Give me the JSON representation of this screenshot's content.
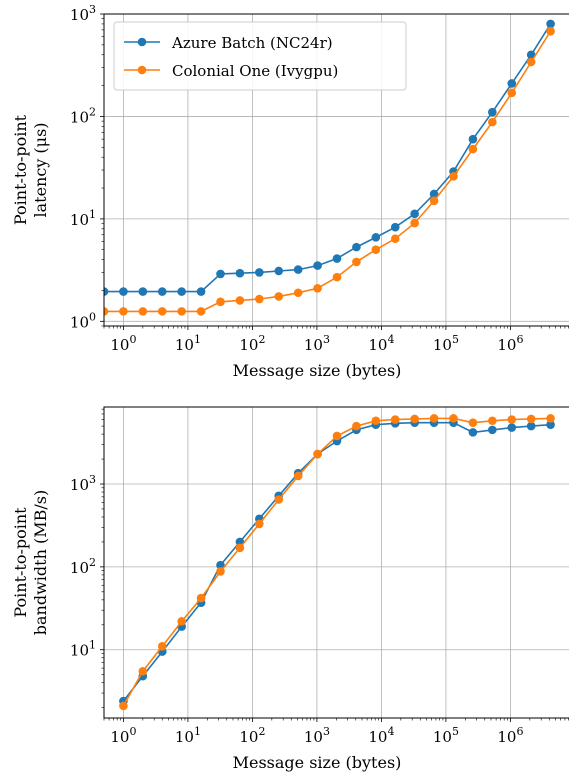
{
  "chart_data": [
    {
      "type": "line",
      "title": "",
      "xlabel": "Message size (bytes)",
      "ylabel_lines": [
        "Point-to-point",
        "latency (μs)"
      ],
      "xscale": "log",
      "yscale": "log",
      "xlim": [
        0.5,
        8388608
      ],
      "ylim": [
        0.9,
        1000
      ],
      "grid": true,
      "legend": "top-left",
      "x_ticks": [
        1,
        10,
        100,
        1000,
        10000,
        100000,
        1000000
      ],
      "x_tick_labels": [
        [
          "10",
          "0"
        ],
        [
          "10",
          "1"
        ],
        [
          "10",
          "2"
        ],
        [
          "10",
          "3"
        ],
        [
          "10",
          "4"
        ],
        [
          "10",
          "5"
        ],
        [
          "10",
          "6"
        ]
      ],
      "y_ticks": [
        1,
        10,
        100,
        1000
      ],
      "y_tick_labels": [
        [
          "10",
          "0"
        ],
        [
          "10",
          "1"
        ],
        [
          "10",
          "2"
        ],
        [
          "10",
          "3"
        ]
      ],
      "x": [
        0.5,
        1,
        2,
        4,
        8,
        16,
        32,
        64,
        128,
        256,
        512,
        1024,
        2048,
        4096,
        8192,
        16384,
        32768,
        65536,
        131072,
        262144,
        524288,
        1048576,
        2097152,
        4194304
      ],
      "series": [
        {
          "name": "Azure Batch (NC24r)",
          "color": "#1f77b4",
          "values": [
            1.95,
            1.95,
            1.95,
            1.95,
            1.95,
            1.95,
            2.9,
            2.95,
            3.0,
            3.1,
            3.2,
            3.5,
            4.1,
            5.3,
            6.6,
            8.3,
            11.2,
            17.5,
            29,
            60,
            110,
            210,
            400,
            800
          ]
        },
        {
          "name": "Colonial One (Ivygpu)",
          "color": "#ff7f0e",
          "values": [
            1.25,
            1.25,
            1.25,
            1.25,
            1.25,
            1.25,
            1.55,
            1.6,
            1.65,
            1.75,
            1.9,
            2.1,
            2.7,
            3.8,
            5.0,
            6.4,
            9.1,
            15,
            26,
            48,
            88,
            170,
            340,
            680
          ]
        }
      ]
    },
    {
      "type": "line",
      "title": "",
      "xlabel": "Message size (bytes)",
      "ylabel_lines": [
        "Point-to-point",
        "bandwidth (MB/s)"
      ],
      "xscale": "log",
      "yscale": "log",
      "xlim": [
        0.5,
        8388608
      ],
      "ylim": [
        1.5,
        8500
      ],
      "grid": true,
      "x_ticks": [
        1,
        10,
        100,
        1000,
        10000,
        100000,
        1000000
      ],
      "x_tick_labels": [
        [
          "10",
          "0"
        ],
        [
          "10",
          "1"
        ],
        [
          "10",
          "2"
        ],
        [
          "10",
          "3"
        ],
        [
          "10",
          "4"
        ],
        [
          "10",
          "5"
        ],
        [
          "10",
          "6"
        ]
      ],
      "y_ticks": [
        10,
        100,
        1000
      ],
      "y_tick_labels": [
        [
          "10",
          "1"
        ],
        [
          "10",
          "2"
        ],
        [
          "10",
          "3"
        ]
      ],
      "x": [
        1,
        2,
        4,
        8,
        16,
        32,
        64,
        128,
        256,
        512,
        1024,
        2048,
        4096,
        8192,
        16384,
        32768,
        65536,
        131072,
        262144,
        524288,
        1048576,
        2097152,
        4194304
      ],
      "series": [
        {
          "name": "Azure Batch (NC24r)",
          "color": "#1f77b4",
          "values": [
            2.4,
            4.8,
            9.5,
            19,
            37,
            105,
            200,
            380,
            720,
            1350,
            2300,
            3300,
            4500,
            5200,
            5400,
            5500,
            5500,
            5500,
            4200,
            4500,
            4800,
            5000,
            5200
          ]
        },
        {
          "name": "Colonial One (Ivygpu)",
          "color": "#ff7f0e",
          "values": [
            2.1,
            5.5,
            11,
            22,
            42,
            88,
            170,
            330,
            650,
            1250,
            2300,
            3800,
            5000,
            5800,
            6000,
            6100,
            6200,
            6200,
            5500,
            5800,
            6000,
            6100,
            6200
          ]
        }
      ]
    }
  ]
}
